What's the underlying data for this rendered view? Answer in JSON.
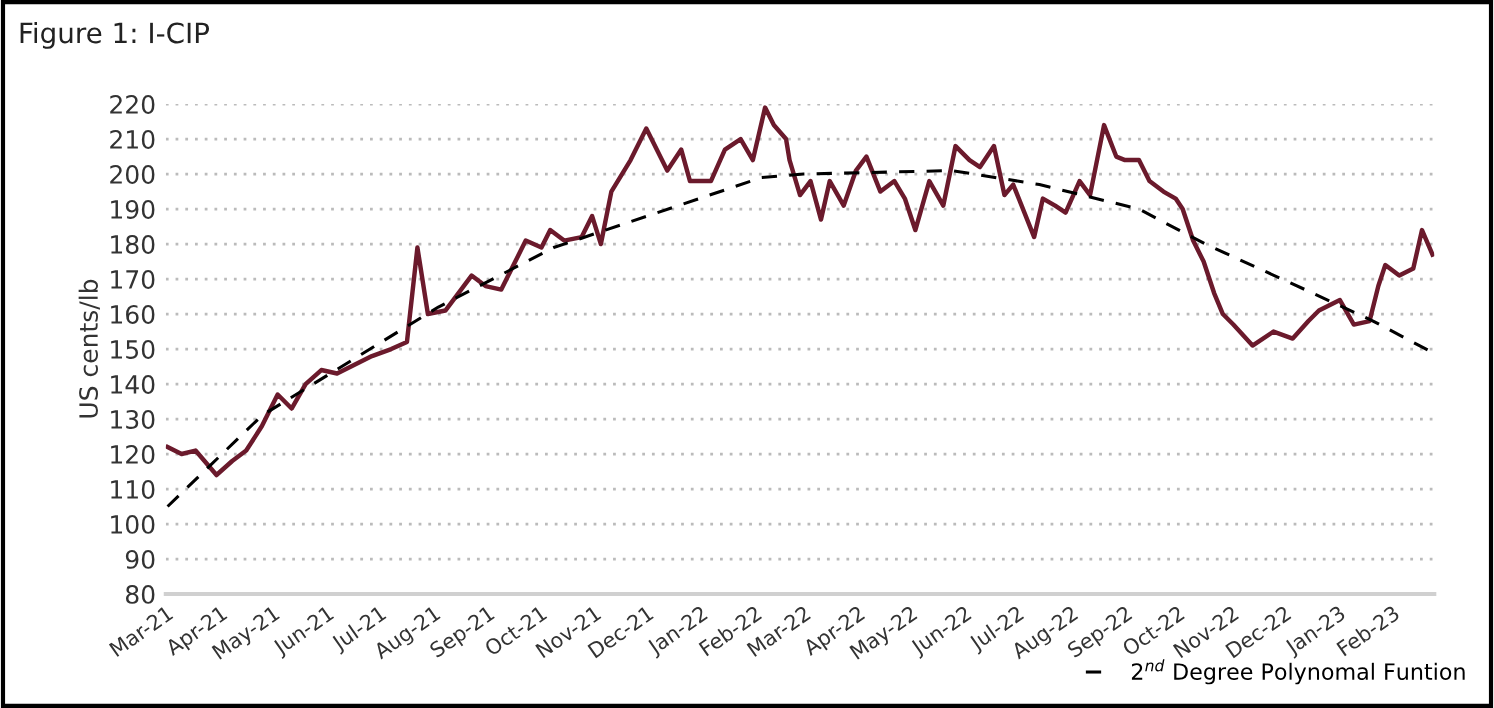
{
  "chart_data": {
    "type": "line",
    "title": "Figure 1: I-CIP",
    "ylabel": "US cents/lb",
    "xlim": [
      "2021-03-01",
      "2023-02-25"
    ],
    "xticks": [
      {
        "value": "2021-03-01",
        "label": "Mar-21"
      },
      {
        "value": "2021-04-01",
        "label": "Apr-21"
      },
      {
        "value": "2021-05-01",
        "label": "May-21"
      },
      {
        "value": "2021-06-01",
        "label": "Jun-21"
      },
      {
        "value": "2021-07-01",
        "label": "Jul-21"
      },
      {
        "value": "2021-08-01",
        "label": "Aug-21"
      },
      {
        "value": "2021-09-01",
        "label": "Sep-21"
      },
      {
        "value": "2021-10-01",
        "label": "Oct-21"
      },
      {
        "value": "2021-11-01",
        "label": "Nov-21"
      },
      {
        "value": "2021-12-01",
        "label": "Dec-21"
      },
      {
        "value": "2022-01-01",
        "label": "Jan-22"
      },
      {
        "value": "2022-02-01",
        "label": "Feb-22"
      },
      {
        "value": "2022-03-01",
        "label": "Mar-22"
      },
      {
        "value": "2022-04-01",
        "label": "Apr-22"
      },
      {
        "value": "2022-05-01",
        "label": "May-22"
      },
      {
        "value": "2022-06-01",
        "label": "Jun-22"
      },
      {
        "value": "2022-07-01",
        "label": "Jul-22"
      },
      {
        "value": "2022-08-01",
        "label": "Aug-22"
      },
      {
        "value": "2022-09-01",
        "label": "Sep-22"
      },
      {
        "value": "2022-10-01",
        "label": "Oct-22"
      },
      {
        "value": "2022-11-01",
        "label": "Nov-22"
      },
      {
        "value": "2022-12-01",
        "label": "Dec-22"
      },
      {
        "value": "2023-01-01",
        "label": "Jan-23"
      },
      {
        "value": "2023-02-01",
        "label": "Feb-23"
      }
    ],
    "ylim": [
      80,
      220
    ],
    "yticks": [
      80,
      90,
      100,
      110,
      120,
      130,
      140,
      150,
      160,
      170,
      180,
      190,
      200,
      210,
      220
    ],
    "grid": "y",
    "legend": "bottom right",
    "series": [
      {
        "color": "#6b1a2c",
        "line_style": "solid",
        "x": [
          "2021-03-02",
          "2021-03-10",
          "2021-03-18",
          "2021-03-30",
          "2021-04-08",
          "2021-04-16",
          "2021-04-25",
          "2021-05-04",
          "2021-05-12",
          "2021-05-20",
          "2021-05-29",
          "2021-06-07",
          "2021-06-15",
          "2021-06-27",
          "2021-07-08",
          "2021-07-17",
          "2021-07-23",
          "2021-07-29",
          "2021-08-08",
          "2021-08-23",
          "2021-08-31",
          "2021-09-09",
          "2021-09-23",
          "2021-10-02",
          "2021-10-07",
          "2021-10-15",
          "2021-10-25",
          "2021-10-31",
          "2021-11-05",
          "2021-11-11",
          "2021-11-22",
          "2021-12-01",
          "2021-12-13",
          "2021-12-21",
          "2021-12-26",
          "2022-01-07",
          "2022-01-15",
          "2022-01-24",
          "2022-01-31",
          "2022-02-07",
          "2022-02-12",
          "2022-02-19",
          "2022-02-21",
          "2022-02-27",
          "2022-03-05",
          "2022-03-11",
          "2022-03-16",
          "2022-03-24",
          "2022-03-31",
          "2022-04-06",
          "2022-04-14",
          "2022-04-22",
          "2022-04-28",
          "2022-05-04",
          "2022-05-12",
          "2022-05-20",
          "2022-05-27",
          "2022-06-04",
          "2022-06-10",
          "2022-06-18",
          "2022-06-24",
          "2022-06-29",
          "2022-07-11",
          "2022-07-16",
          "2022-07-23",
          "2022-07-29",
          "2022-08-06",
          "2022-08-12",
          "2022-08-20",
          "2022-08-27",
          "2022-09-01",
          "2022-09-09",
          "2022-09-15",
          "2022-09-23",
          "2022-09-30",
          "2022-10-04",
          "2022-10-10",
          "2022-10-16",
          "2022-10-22",
          "2022-10-27",
          "2022-11-02",
          "2022-11-13",
          "2022-11-25",
          "2022-12-06",
          "2022-12-15",
          "2022-12-21",
          "2023-01-02",
          "2023-01-10",
          "2023-01-19",
          "2023-01-24",
          "2023-01-28",
          "2023-02-05",
          "2023-02-13",
          "2023-02-18",
          "2023-02-24"
        ],
        "values": [
          122,
          120,
          121,
          114,
          118,
          121,
          128,
          137,
          133,
          140,
          144,
          143,
          145,
          148,
          150,
          152,
          179,
          160,
          161,
          171,
          168,
          167,
          181,
          179,
          184,
          181,
          182,
          188,
          180,
          195,
          204,
          213,
          201,
          207,
          198,
          198,
          207,
          210,
          204,
          219,
          214,
          210,
          204,
          194,
          198,
          187,
          198,
          191,
          201,
          205,
          195,
          198,
          193,
          184,
          198,
          191,
          208,
          204,
          202,
          208,
          194,
          197,
          182,
          193,
          191,
          189,
          198,
          194,
          214,
          205,
          204,
          204,
          198,
          195,
          193,
          190,
          181,
          175,
          166,
          160,
          157,
          151,
          155,
          153,
          158,
          161,
          164,
          157,
          158,
          168,
          174,
          171,
          173,
          184,
          177
        ]
      },
      {
        "name": "2$^{nd}$ Degree Polynomal Funtion",
        "color": "#000000",
        "line_style": "dashed",
        "x": [
          "2021-03-02",
          "2021-04-25",
          "2021-08-04",
          "2021-10-09",
          "2022-02-05",
          "2022-03-01",
          "2022-05-25",
          "2022-07-14",
          "2022-09-09",
          "2022-10-17",
          "2022-12-13",
          "2023-01-21",
          "2023-02-24"
        ],
        "values": [
          105,
          131,
          162,
          179,
          199,
          200,
          201,
          197,
          190,
          180,
          167,
          158,
          149
        ]
      }
    ]
  }
}
